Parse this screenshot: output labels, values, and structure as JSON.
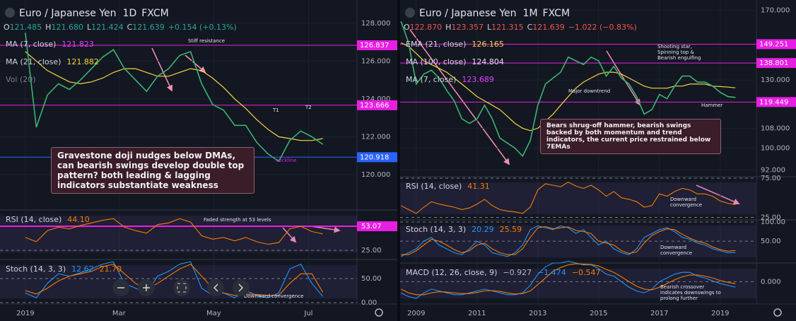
{
  "chart_data": [
    {
      "type": "line",
      "title": "Euro / Japanese Yen",
      "interval": "1D",
      "source": "FXCM",
      "ohlc": [
        {
          "name": "O",
          "value_label": "121.485"
        },
        {
          "name": "H",
          "value_label": "121.680"
        },
        {
          "name": "L",
          "value_label": "121.424"
        },
        {
          "name": "C",
          "value_label": "121.639"
        }
      ],
      "ohlc_color": "#26a69a",
      "change": "+0.154 (+0.13%)",
      "color": "#3cb371",
      "x": [
        0,
        1,
        2,
        3,
        4,
        5,
        6,
        7,
        8,
        9,
        10,
        11,
        12,
        13,
        14,
        15,
        16,
        17,
        18,
        19,
        20,
        21,
        22,
        23,
        24,
        25,
        26,
        27
      ],
      "values": [
        127.5,
        122.5,
        124.2,
        124.8,
        124.5,
        125.0,
        125.6,
        126.2,
        126.6,
        125.6,
        125.0,
        124.4,
        125.2,
        125.6,
        126.3,
        126.5,
        124.8,
        123.7,
        123.4,
        122.6,
        122.6,
        121.7,
        121.1,
        120.7,
        121.8,
        122.3,
        122.0,
        121.6
      ],
      "xlim": [
        -2.3,
        30.1
      ],
      "xticks": [
        {
          "value": 0,
          "label": "2019"
        },
        {
          "value": 8.5,
          "label": "Mar"
        },
        {
          "value": 17.1,
          "label": "May"
        },
        {
          "value": 25.7,
          "label": "Jul"
        }
      ],
      "ylim": [
        118.2,
        129.23
      ],
      "log": false,
      "yticks": [
        {
          "value": 120,
          "label": "120.000"
        },
        {
          "value": 122,
          "label": "122.000"
        },
        {
          "value": 124,
          "label": "124.000"
        },
        {
          "value": 126,
          "label": "126.000"
        },
        {
          "value": 128,
          "label": "128.000"
        }
      ],
      "studies": [
        {
          "name": "MA (7, close)",
          "value": 121.823,
          "color": "#e040fb"
        },
        {
          "name": "MA (21, close)",
          "value": 121.882,
          "color": "#f5d63d",
          "values": [
            126.5,
            126,
            125.5,
            125.2,
            124.9,
            124.8,
            124.9,
            125.1,
            125.4,
            125.6,
            125.6,
            125.4,
            125.2,
            125.2,
            125.4,
            125.6,
            125.5,
            125.1,
            124.6,
            124.0,
            123.5,
            122.9,
            122.4,
            122.0,
            121.9,
            121.8,
            121.8,
            121.9
          ]
        },
        {
          "name": "Vol (20)",
          "color": "#787b86"
        }
      ],
      "levels": [
        {
          "value": 126.837,
          "color": "#e91ee3"
        },
        {
          "value": 123.666,
          "color": "#e91ee3"
        },
        {
          "value": 120.918,
          "color": "#2962ff"
        }
      ],
      "annotations": [
        "Stiff resistance",
        "T1",
        "T2",
        "neckline",
        "Gravestone doji nudges below DMAs, can bearish swings develop double top pattern? both leading & lagging indicators substantiate weakness",
        "Faded strength at 53 levels",
        "Downward convergence"
      ],
      "indicators": [
        {
          "name": "RSI (14, close)",
          "ylim": [
            15.9,
            72.1
          ],
          "yticks": [
            {
              "value": 25,
              "label": "25.00"
            }
          ],
          "levels": [
            {
              "value": 53.07,
              "color": "#e91ee3"
            }
          ],
          "series": [
            {
              "color": "#f57c00",
              "value_label": "44.10",
              "values": [
                40,
                35,
                48,
                52,
                50,
                54,
                57,
                60,
                62,
                52,
                48,
                45,
                55,
                57,
                62,
                58,
                42,
                38,
                40,
                36,
                40,
                35,
                32,
                34,
                50,
                53,
                47,
                44.1
              ]
            }
          ]
        },
        {
          "name": "Stoch (14, 3, 3)",
          "ylim": [
            -2.9,
            89.7
          ],
          "yticks": [
            {
              "value": 0,
              "label": "0.00"
            },
            {
              "value": 50,
              "label": "50.00"
            }
          ],
          "series": [
            {
              "color": "#2196f3",
              "value_label": "12.62",
              "values": [
                20,
                10,
                40,
                60,
                55,
                62,
                70,
                80,
                85,
                40,
                30,
                20,
                55,
                65,
                80,
                85,
                30,
                15,
                20,
                10,
                25,
                15,
                10,
                20,
                70,
                80,
                40,
                12.62
              ]
            },
            {
              "color": "#f57c00",
              "value_label": "21.70",
              "values": [
                25,
                18,
                30,
                45,
                55,
                60,
                65,
                75,
                80,
                60,
                40,
                28,
                40,
                55,
                70,
                80,
                55,
                30,
                20,
                15,
                18,
                17,
                15,
                15,
                40,
                60,
                60,
                21.7
              ]
            }
          ]
        }
      ]
    },
    {
      "type": "line",
      "title": "Euro / Japanese Yen",
      "interval": "1M",
      "source": "FXCM",
      "ohlc": [
        {
          "name": "O",
          "value_label": "122.870"
        },
        {
          "name": "H",
          "value_label": "123.357"
        },
        {
          "name": "L",
          "value_label": "121.315"
        },
        {
          "name": "C",
          "value_label": "121.639"
        }
      ],
      "ohlc_color": "#ef5350",
      "change": "−1.022 (−0.83%)",
      "color": "#3cb371",
      "x": [
        2008.5,
        2008.75,
        2009,
        2009.25,
        2009.5,
        2009.75,
        2010,
        2010.25,
        2010.5,
        2010.75,
        2011,
        2011.25,
        2011.5,
        2011.75,
        2012,
        2012.25,
        2012.5,
        2012.75,
        2013,
        2013.25,
        2013.5,
        2013.75,
        2014,
        2014.25,
        2014.5,
        2014.75,
        2015,
        2015.25,
        2015.5,
        2015.75,
        2016,
        2016.25,
        2016.5,
        2016.75,
        2017,
        2017.25,
        2017.5,
        2017.75,
        2018,
        2018.25,
        2018.5,
        2018.75,
        2019,
        2019.25,
        2019.5
      ],
      "values": [
        163,
        150,
        128,
        133,
        135,
        131,
        125,
        120,
        112,
        110,
        112,
        118,
        112,
        104,
        102,
        100,
        97,
        103,
        118,
        128,
        131,
        134,
        142,
        140,
        138,
        142,
        140,
        132,
        137,
        131,
        128,
        122,
        114,
        116,
        123,
        121,
        127,
        132,
        132,
        129,
        129,
        127,
        124,
        122,
        121.6
      ],
      "xlim": [
        2008.47,
        2020.19
      ],
      "xticks": [
        2009,
        2011,
        2013,
        2015,
        2017,
        2019
      ],
      "ylim": [
        89.6,
        176.9
      ],
      "log": true,
      "yticks": [
        {
          "value": 92,
          "label": "92.000"
        },
        {
          "value": 100,
          "label": "100.000"
        },
        {
          "value": 108,
          "label": "108.000"
        },
        {
          "value": 130,
          "label": "130.000"
        },
        {
          "value": 170,
          "label": "170.000"
        }
      ],
      "studies": [
        {
          "name": "EMA (21, close)",
          "value": 126.165,
          "color": "#f5d63d",
          "values": [
            150,
            148,
            144,
            140,
            138,
            136,
            134,
            131,
            128,
            125,
            122,
            120,
            118,
            116,
            113,
            110,
            108,
            107,
            108,
            111,
            114,
            118,
            122,
            126,
            129,
            131,
            133,
            134,
            134,
            133,
            131,
            129,
            127,
            126,
            126,
            126,
            127,
            127,
            128,
            128,
            128,
            127,
            126.8,
            126.5,
            126.165
          ]
        },
        {
          "name": "MA (100, close)",
          "value": 124.804,
          "color": "#e0e3eb"
        },
        {
          "name": "MA (7, close)",
          "value": 123.689,
          "color": "#e040fb"
        }
      ],
      "levels": [
        {
          "value": 149.251,
          "color": "#e91ee3"
        },
        {
          "value": 138.801,
          "color": "#e91ee3"
        },
        {
          "value": 119.449,
          "color": "#e91ee3"
        }
      ],
      "annotations": [
        "Shooting star, Spinning top & Bearish engulfing",
        "Major downtrend",
        "Hammer",
        "Bears shrug-off hammer, bearish swings backed by both momentum and trend indicators, the current price restrained below 7EMAs",
        "Downward convergence",
        "Downward convergence",
        "Bearish crossover indicates downswings to prolong further"
      ],
      "indicators": [
        {
          "name": "RSI (14, close)",
          "ylim": [
            21.8,
            76.8
          ],
          "yticks": [
            {
              "value": 25,
              "label": "25.00"
            },
            {
              "value": 75,
              "label": "75.00"
            }
          ],
          "series": [
            {
              "color": "#f57c00",
              "value_label": "41.31",
              "values": [
                40,
                35,
                30,
                38,
                45,
                42,
                40,
                38,
                35,
                37,
                42,
                48,
                40,
                35,
                33,
                32,
                30,
                38,
                60,
                68,
                66,
                64,
                70,
                65,
                62,
                66,
                60,
                52,
                58,
                50,
                48,
                45,
                38,
                40,
                55,
                52,
                58,
                62,
                60,
                55,
                55,
                52,
                46,
                43,
                41.31
              ]
            }
          ]
        },
        {
          "name": "Stoch (14, 3, 3)",
          "ylim": [
            -7,
            105.5
          ],
          "yticks": [
            {
              "value": 50,
              "label": "50.00"
            },
            {
              "value": 100,
              "label": "100.00"
            }
          ],
          "series": [
            {
              "color": "#2196f3",
              "value_label": "20.29",
              "values": [
                10,
                20,
                30,
                50,
                60,
                40,
                30,
                20,
                15,
                30,
                50,
                40,
                20,
                15,
                10,
                20,
                40,
                80,
                90,
                85,
                80,
                90,
                85,
                70,
                80,
                60,
                40,
                50,
                30,
                20,
                15,
                30,
                60,
                70,
                80,
                85,
                75,
                60,
                55,
                45,
                40,
                30,
                25,
                20,
                20.29
              ]
            },
            {
              "color": "#f57c00",
              "value_label": "25.59",
              "values": [
                15,
                15,
                25,
                40,
                55,
                50,
                40,
                28,
                20,
                25,
                40,
                45,
                30,
                20,
                15,
                15,
                30,
                60,
                85,
                88,
                82,
                85,
                87,
                78,
                75,
                70,
                50,
                45,
                40,
                25,
                18,
                22,
                45,
                65,
                75,
                82,
                80,
                68,
                58,
                50,
                45,
                35,
                28,
                24,
                25.59
              ]
            }
          ]
        },
        {
          "name": "MACD (12, 26, close, 9)",
          "value_label": "−0.927",
          "ylim": [
            -6,
            5
          ],
          "yticks": [
            {
              "value": 0,
              "label": "0.000"
            }
          ],
          "series": [
            {
              "color": "#2196f3",
              "value_label": "−1.474",
              "values": [
                -3,
                -4,
                -4.5,
                -3,
                -2,
                -2.5,
                -3,
                -3.5,
                -3.5,
                -3,
                -2.5,
                -2,
                -2.5,
                -3,
                -3.5,
                -3.5,
                -3,
                -1,
                2,
                4,
                5,
                5,
                5.5,
                5,
                4.5,
                4.5,
                3.5,
                2,
                1.5,
                0,
                -1.5,
                -2.5,
                -3,
                -2,
                0,
                1,
                2,
                2.5,
                2.5,
                1.5,
                1,
                0.2,
                -0.5,
                -1,
                -1.474
              ]
            },
            {
              "color": "#f57c00",
              "value_label": "−0.547",
              "values": [
                -2,
                -3,
                -3.5,
                -3.5,
                -3,
                -2.7,
                -2.8,
                -3,
                -3.2,
                -3.2,
                -2.9,
                -2.5,
                -2.4,
                -2.6,
                -3,
                -3.3,
                -3.2,
                -2.5,
                -0.8,
                1,
                2.8,
                3.8,
                4.5,
                4.8,
                4.7,
                4.6,
                4.2,
                3.3,
                2.5,
                1.3,
                0,
                -1.2,
                -2,
                -2.2,
                -1.5,
                -0.5,
                0.5,
                1.3,
                1.8,
                1.8,
                1.5,
                1,
                0.3,
                -0.2,
                -0.547
              ]
            }
          ]
        }
      ]
    }
  ]
}
